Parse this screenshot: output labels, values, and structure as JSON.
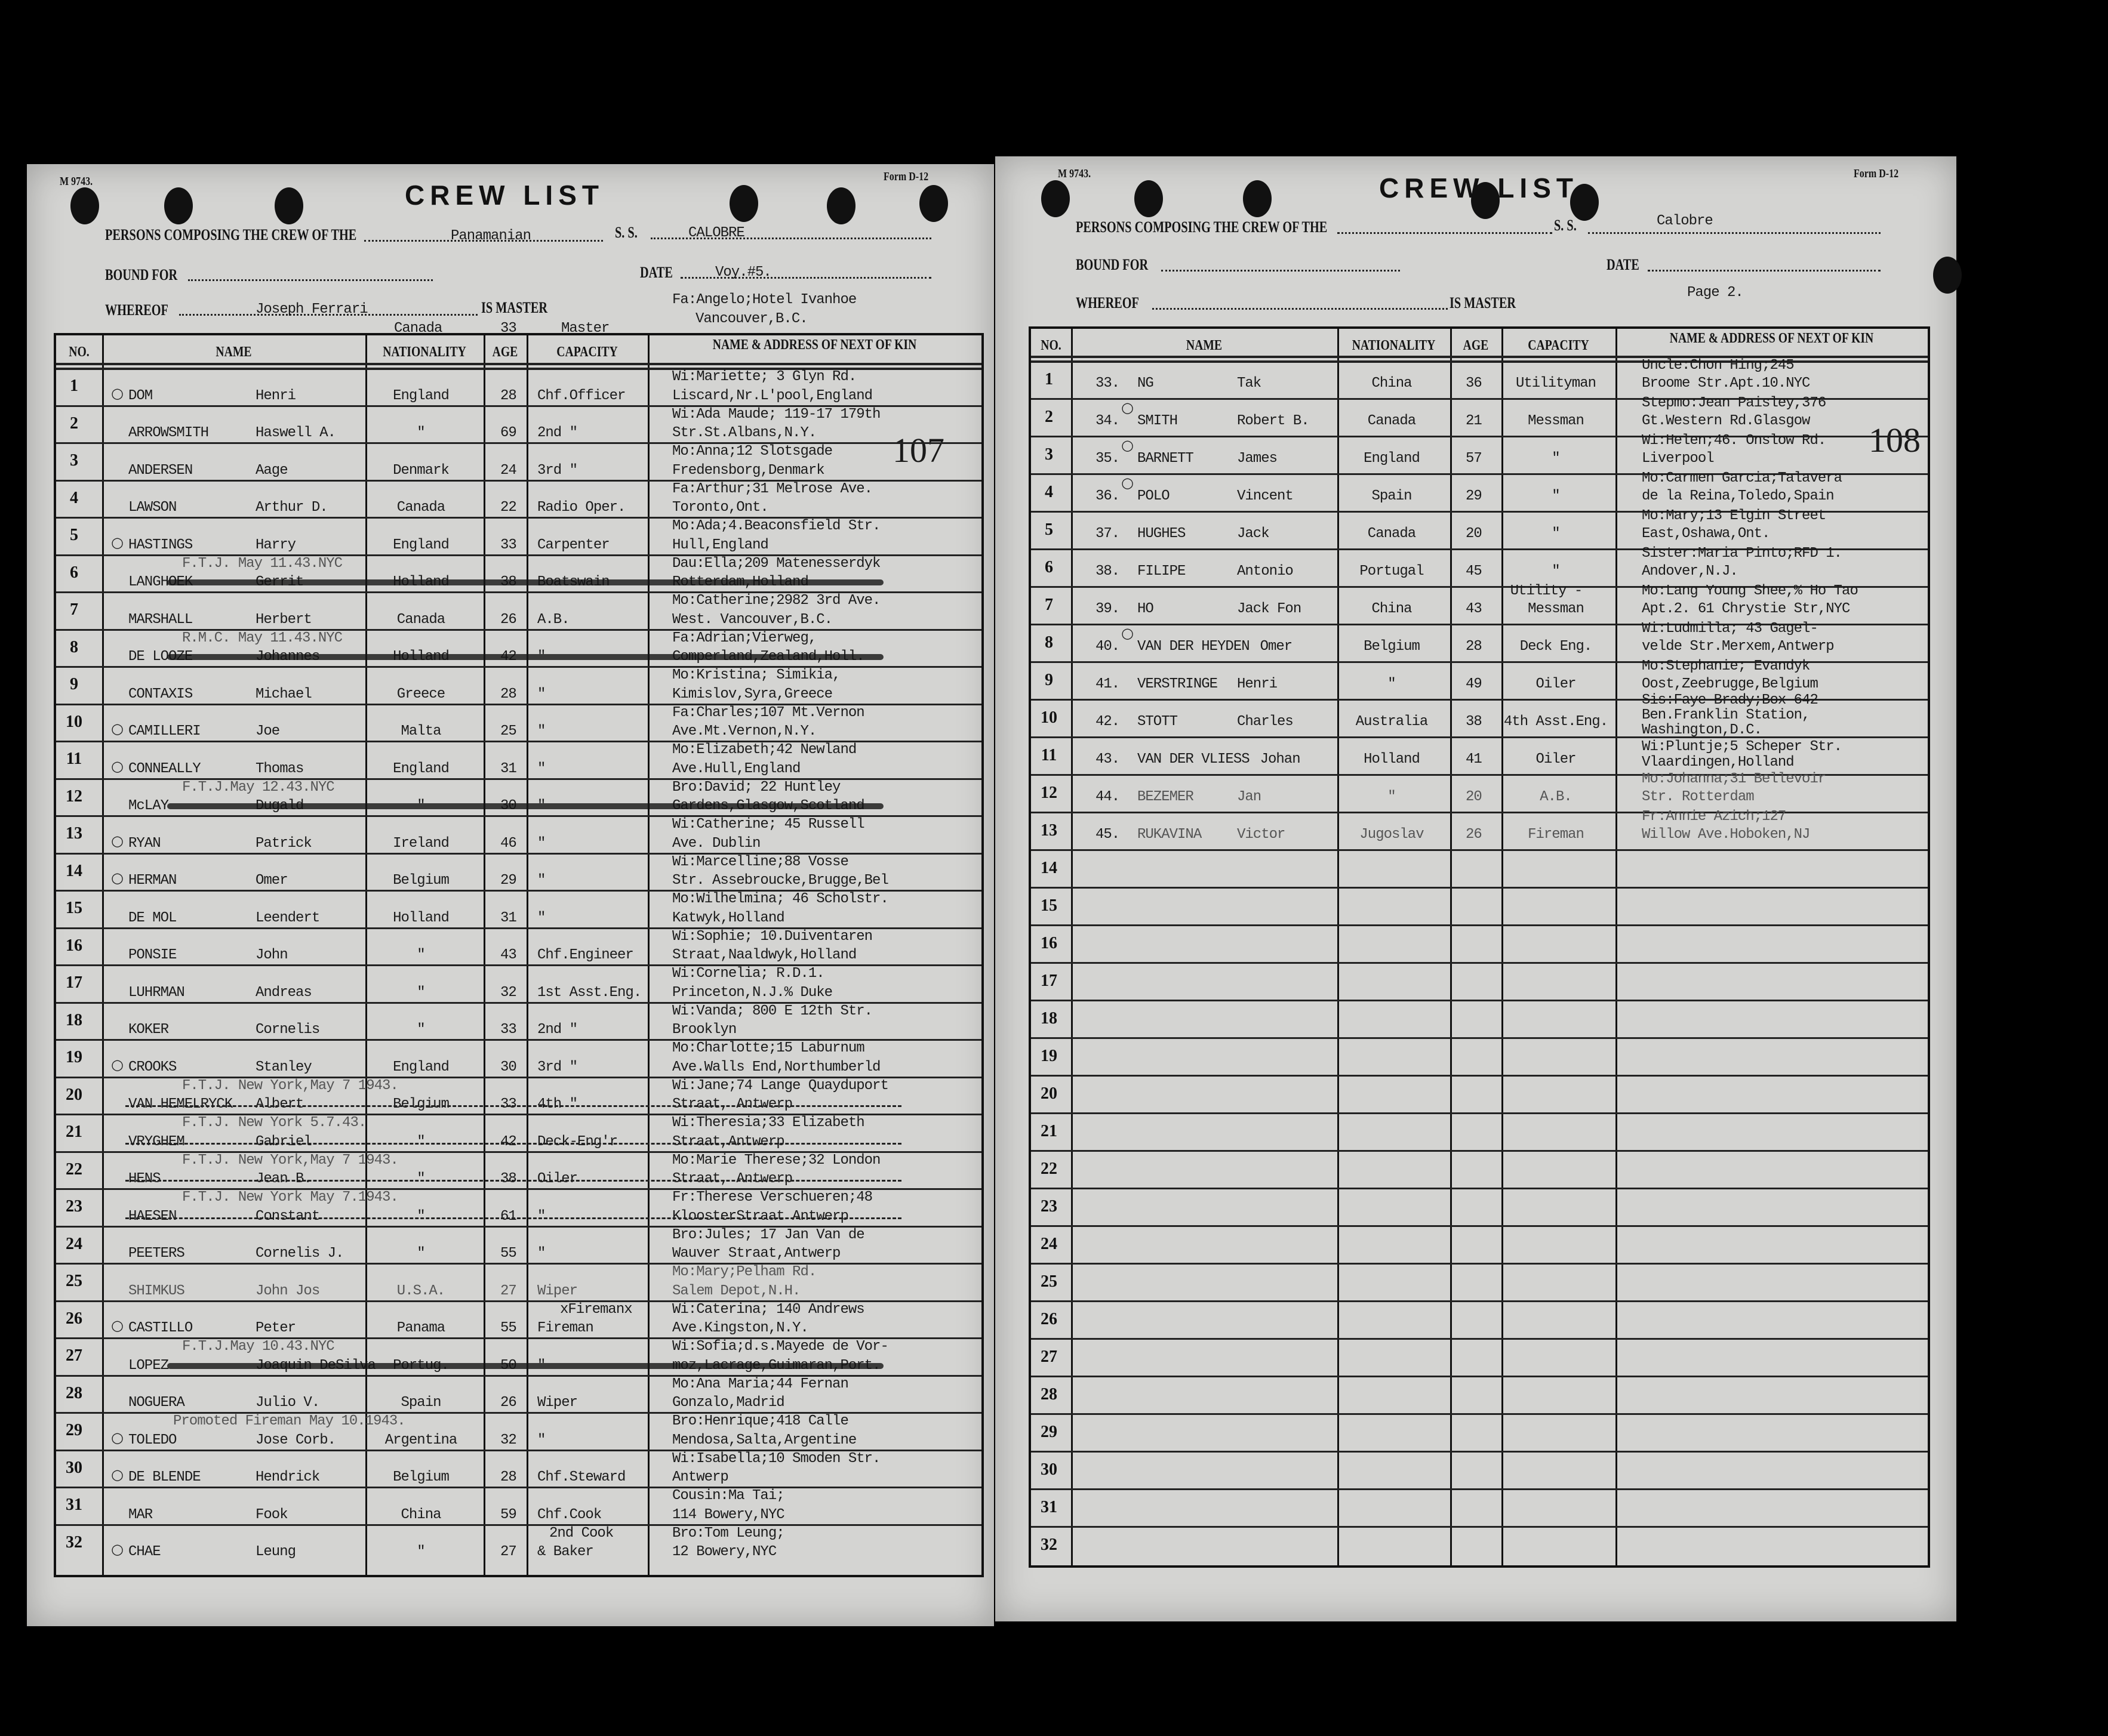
{
  "left_page": {
    "form_number": "M 9743.",
    "form_id": "Form D-12",
    "title": "CREW LIST",
    "persons_label": "PERSONS COMPOSING THE CREW OF THE",
    "crew_of_value": "Panamanian",
    "ss_label": "S. S.",
    "ship_name": "CALOBRE",
    "bound_for_label": "BOUND FOR",
    "date_label": "DATE",
    "date_value": "Voy.#5.",
    "whereof_label": "WHEREOF",
    "master_name": "Joseph Ferrari",
    "is_master_label": "IS MASTER",
    "master_kin_line1": "Fa:Angelo;Hotel Ivanhoe",
    "master_kin_line2": "Vancouver,B.C.",
    "master_nationality_note": "Canada",
    "master_age_note": "33",
    "master_capacity_note": "Master",
    "page_stamp": "107",
    "columns": {
      "no": "NO.",
      "name": "NAME",
      "nationality": "NATIONALITY",
      "age": "AGE",
      "capacity": "CAPACITY",
      "kin": "NAME & ADDRESS OF NEXT OF KIN"
    },
    "row_numbers": [
      "1",
      "2",
      "3",
      "4",
      "5",
      "6",
      "7",
      "8",
      "9",
      "10",
      "11",
      "12",
      "13",
      "14",
      "15",
      "16",
      "17",
      "18",
      "19",
      "20",
      "21",
      "22",
      "23",
      "24",
      "25",
      "26",
      "27",
      "28",
      "29",
      "30",
      "31",
      "32"
    ],
    "entries": [
      {
        "surname": "DOM",
        "given": "Henri",
        "nationality": "England",
        "age": "28",
        "capacity": "Chf.Officer",
        "kin": [
          "Wi:Mariette; 3 Glyn Rd.",
          "Liscard,Nr.L'pool,England"
        ],
        "mark": "O"
      },
      {
        "surname": "ARROWSMITH",
        "given": "Haswell A.",
        "nationality": "\"",
        "age": "69",
        "capacity": "2nd    \"",
        "kin": [
          "Wi:Ada Maude; 119-17  179th",
          "Str.St.Albans,N.Y."
        ]
      },
      {
        "surname": "ANDERSEN",
        "given": "Aage",
        "nationality": "Denmark",
        "age": "24",
        "capacity": "3rd    \"",
        "kin": [
          "Mo:Anna;12 Slotsgade",
          "Fredensborg,Denmark"
        ]
      },
      {
        "surname": "LAWSON",
        "given": "Arthur D.",
        "nationality": "Canada",
        "age": "22",
        "capacity": "Radio Oper.",
        "kin": [
          "Fa:Arthur;31 Melrose Ave.",
          "Toronto,Ont."
        ]
      },
      {
        "surname": "HASTINGS",
        "given": "Harry",
        "nationality": "England",
        "age": "33",
        "capacity": "Carpenter",
        "kin": [
          "Mo:Ada;4.Beaconsfield Str.",
          "Hull,England"
        ],
        "mark": "O"
      },
      {
        "surname": "LANGHOEK",
        "given": "Gerrit",
        "nationality": "Holland",
        "age": "38",
        "capacity": "Boatswain",
        "kin": [
          "Dau:Ella;209 Matenesserdyk",
          "Rotterdam,Holland"
        ],
        "note": "F.T.J. May 11.43.NYC",
        "struck": "heavy"
      },
      {
        "surname": "MARSHALL",
        "given": "Herbert",
        "nationality": "Canada",
        "age": "26",
        "capacity": "A.B.",
        "kin": [
          "Mo:Catherine;2982 3rd Ave.",
          "West. Vancouver,B.C."
        ]
      },
      {
        "surname": "DE LOOZE",
        "given": "Johannes",
        "nationality": "Holland",
        "age": "42",
        "capacity": "\"",
        "kin": [
          "Fa:Adrian;Vierweg,",
          "Comperland,Zealand,Holl."
        ],
        "note": "R.M.C. May 11.43.NYC",
        "struck": "heavy"
      },
      {
        "surname": "CONTAXIS",
        "given": "Michael",
        "nationality": "Greece",
        "age": "28",
        "capacity": "\"",
        "kin": [
          "Mo:Kristina; Simikia,",
          "Kimislov,Syra,Greece"
        ]
      },
      {
        "surname": "CAMILLERI",
        "given": "Joe",
        "nationality": "Malta",
        "age": "25",
        "capacity": "\"",
        "kin": [
          "Fa:Charles;107 Mt.Vernon",
          "Ave.Mt.Vernon,N.Y."
        ],
        "mark": "O"
      },
      {
        "surname": "CONNEALLY",
        "given": "Thomas",
        "nationality": "England",
        "age": "31",
        "capacity": "\"",
        "kin": [
          "Mo:Elizabeth;42 Newland",
          "Ave.Hull,England"
        ],
        "mark": "O"
      },
      {
        "surname": "McLAY",
        "given": "Dugald",
        "nationality": "\"",
        "age": "30",
        "capacity": "\"",
        "kin": [
          "Bro:David; 22 Huntley",
          "Gardens,Glasgow,Scotland"
        ],
        "note": "F.T.J.May 12.43.NYC",
        "struck": "heavy"
      },
      {
        "surname": "RYAN",
        "given": "Patrick",
        "nationality": "Ireland",
        "age": "46",
        "capacity": "\"",
        "kin": [
          "Wi:Catherine; 45 Russell",
          "Ave. Dublin"
        ],
        "mark": "O"
      },
      {
        "surname": "HERMAN",
        "given": "Omer",
        "nationality": "Belgium",
        "age": "29",
        "capacity": "\"",
        "kin": [
          "Wi:Marcelline;88 Vosse",
          "Str. Assebroucke,Brugge,Bel"
        ],
        "mark": "O"
      },
      {
        "surname": "DE MOL",
        "given": "Leendert",
        "nationality": "Holland",
        "age": "31",
        "capacity": "\"",
        "kin": [
          "Mo:Wilhelmina; 46 Scholstr.",
          "Katwyk,Holland"
        ]
      },
      {
        "surname": "PONSIE",
        "given": "John",
        "nationality": "\"",
        "age": "43",
        "capacity": "Chf.Engineer",
        "kin": [
          "Wi:Sophie; 10.Duiventaren",
          "Straat,Naaldwyk,Holland"
        ]
      },
      {
        "surname": "LUHRMAN",
        "given": "Andreas",
        "nationality": "\"",
        "age": "32",
        "capacity": "1st Asst.Eng.",
        "kin": [
          "Wi:Cornelia; R.D.1.",
          "Princeton,N.J.% Duke"
        ]
      },
      {
        "surname": "KOKER",
        "given": "Cornelis",
        "nationality": "\"",
        "age": "33",
        "capacity": "2nd    \"",
        "kin": [
          "Wi:Vanda; 800 E 12th Str.",
          "Brooklyn"
        ]
      },
      {
        "surname": "CROOKS",
        "given": "Stanley",
        "nationality": "England",
        "age": "30",
        "capacity": "3rd    \"",
        "kin": [
          "Mo:Charlotte;15 Laburnum",
          "Ave.Walls End,Northumberld"
        ],
        "mark": "O"
      },
      {
        "surname": "VAN HEMELRYCK",
        "given": "Albert",
        "nationality": "Belgium",
        "age": "33",
        "capacity": "4th    \"",
        "kin": [
          "Wi:Jane;74 Lange Quayduport",
          "Straat, Antwerp"
        ],
        "note": "F.T.J. New York,May 7 1943.",
        "struck": "dashed"
      },
      {
        "surname": "VRYGHEM",
        "given": "Gabriel",
        "nationality": "\"",
        "age": "42",
        "capacity": "Deck-Eng'r",
        "kin": [
          "Wi:Theresia;33 Elizabeth",
          "Straat,Antwerp"
        ],
        "note": "F.T.J. New York 5.7.43.",
        "struck": "dashed"
      },
      {
        "surname": "HENS",
        "given": "Jean B.",
        "nationality": "\"",
        "age": "38",
        "capacity": "Oiler",
        "kin": [
          "Mo:Marie Therese;32 London",
          "Straat, Antwerp"
        ],
        "note": "F.T.J. New York,May 7 1943.",
        "struck": "dashed"
      },
      {
        "surname": "HAESEN",
        "given": "Constant",
        "nationality": "\"",
        "age": "61",
        "capacity": "\"",
        "kin": [
          "Fr:Therese Verschueren;48",
          "KloosterStraat Antwerp"
        ],
        "note": "F.T.J. New York May 7.1943.",
        "struck": "dashed"
      },
      {
        "surname": "PEETERS",
        "given": "Cornelis J.",
        "nationality": "\"",
        "age": "55",
        "capacity": "\"",
        "kin": [
          "Bro:Jules; 17 Jan Van de",
          "Wauver Straat,Antwerp"
        ]
      },
      {
        "surname": "SHIMKUS",
        "given": "John Jos",
        "nationality": "U.S.A.",
        "age": "27",
        "capacity": "Wiper",
        "capacity_below": "xFiremanx",
        "kin": [
          "Mo:Mary;Pelham Rd.",
          "Salem Depot,N.H."
        ],
        "faint": true
      },
      {
        "surname": "CASTILLO",
        "given": "Peter",
        "nationality": "Panama",
        "age": "55",
        "capacity": "Fireman",
        "kin": [
          "Wi:Caterina; 140 Andrews",
          "Ave.Kingston,N.Y."
        ],
        "mark": "O"
      },
      {
        "surname": "LOPEZ",
        "given": "Joaquin DeSilva",
        "nationality": "Portug.",
        "age": "50",
        "capacity": "\"",
        "kin": [
          "Wi:Sofia;d.s.Mayede de Vor-",
          "moz,Lacrage,Guimaran,Port."
        ],
        "note": "F.T.J.May 10.43.NYC",
        "struck": "heavy"
      },
      {
        "surname": "NOGUERA",
        "given": "Julio V.",
        "nationality": "Spain",
        "age": "26",
        "capacity": "Wiper",
        "kin": [
          "Mo:Ana Maria;44 Fernan",
          "Gonzalo,Madrid"
        ]
      },
      {
        "surname": "TOLEDO",
        "given": "Jose Corb.",
        "nationality": "Argentina",
        "age": "32",
        "capacity": "\"",
        "kin": [
          "Bro:Henrique;418 Calle",
          "Mendosa,Salta,Argentine"
        ],
        "note": "Promoted Fireman May 10.1943.",
        "mark": "O"
      },
      {
        "surname": "DE BLENDE",
        "given": "Hendrick",
        "nationality": "Belgium",
        "age": "28",
        "capacity": "Chf.Steward",
        "kin": [
          "Wi:Isabella;10 Smoden Str.",
          "Antwerp"
        ],
        "mark": "O"
      },
      {
        "surname": "MAR",
        "given": "Fook",
        "nationality": "China",
        "age": "59",
        "capacity": "Chf.Cook",
        "kin": [
          "Cousin:Ma Tai;",
          "114 Bowery,NYC"
        ]
      },
      {
        "surname": "CHAE",
        "given": "Leung",
        "nationality": "\"",
        "age": "27",
        "capacity": "& Baker",
        "capacity_above": "2nd Cook",
        "kin": [
          "Bro:Tom Leung;",
          "12 Bowery,NYC"
        ],
        "mark": "O"
      }
    ]
  },
  "right_page": {
    "form_number": "M 9743.",
    "form_id": "Form D-12",
    "title": "CREW LIST",
    "persons_label": "PERSONS COMPOSING THE CREW OF THE",
    "ss_label": "S. S.",
    "ship_name": "Calobre",
    "bound_for_label": "BOUND FOR",
    "date_label": "DATE",
    "whereof_label": "WHEREOF",
    "is_master_label": "IS MASTER",
    "page_label": "Page 2.",
    "page_stamp": "108",
    "columns": {
      "no": "NO.",
      "name": "NAME",
      "nationality": "NATIONALITY",
      "age": "AGE",
      "capacity": "CAPACITY",
      "kin": "NAME & ADDRESS OF NEXT OF KIN"
    },
    "row_numbers": [
      "1",
      "2",
      "3",
      "4",
      "5",
      "6",
      "7",
      "8",
      "9",
      "10",
      "11",
      "12",
      "13",
      "14",
      "15",
      "16",
      "17",
      "18",
      "19",
      "20",
      "21",
      "22",
      "23",
      "24",
      "25",
      "26",
      "27",
      "28",
      "29",
      "30",
      "31",
      "32"
    ],
    "entries": [
      {
        "seq": "33.",
        "surname": "NG",
        "given": "Tak",
        "nationality": "China",
        "age": "36",
        "capacity": "Utilityman",
        "kin": [
          "Uncle:Chon Hing;245",
          "Broome Str.Apt.10.NYC"
        ]
      },
      {
        "seq": "34.",
        "surname": "SMITH",
        "given": "Robert B.",
        "nationality": "Canada",
        "age": "21",
        "capacity": "Messman",
        "kin": [
          "Stepmo:Jean Paisley,376",
          "Gt.Western Rd.Glasgow"
        ],
        "mark": "O"
      },
      {
        "seq": "35.",
        "surname": "BARNETT",
        "given": "James",
        "nationality": "England",
        "age": "57",
        "capacity": "\"",
        "kin": [
          "Wi:Helen;46. Onslow Rd.",
          "Liverpool"
        ],
        "mark": "O"
      },
      {
        "seq": "36.",
        "surname": "POLO",
        "given": "Vincent",
        "nationality": "Spain",
        "age": "29",
        "capacity": "\"",
        "kin": [
          "Mo:Carmen Garcia;Talavera",
          "de la Reina,Toledo,Spain"
        ],
        "mark": "O"
      },
      {
        "seq": "37.",
        "surname": "HUGHES",
        "given": "Jack",
        "nationality": "Canada",
        "age": "20",
        "capacity": "\"",
        "kin": [
          "Mo:Mary;13 Elgin Street",
          "East,Oshawa,Ont."
        ]
      },
      {
        "seq": "38.",
        "surname": "FILIPE",
        "given": "Antonio",
        "nationality": "Portugal",
        "age": "45",
        "capacity": "\"",
        "kin": [
          "Sister:Maria Pinto;RFD 1.",
          "Andover,N.J."
        ]
      },
      {
        "seq": "39.",
        "surname": "HO",
        "given": "Jack Fon",
        "nationality": "China",
        "age": "43",
        "capacity": "Messman",
        "capacity_above": "Utility -",
        "kin": [
          "Mo:Lang Young Shee,% Ho Tao",
          "Apt.2. 61 Chrystie Str,NYC"
        ]
      },
      {
        "seq": "40.",
        "surname": "VAN DER HEYDEN",
        "given": "Omer",
        "nationality": "Belgium",
        "age": "28",
        "capacity": "Deck Eng.",
        "kin": [
          "Wi:Ludmilla; 43 Gagel-",
          "velde Str.Merxem,Antwerp"
        ],
        "mark": "O"
      },
      {
        "seq": "41.",
        "surname": "VERSTRINGE",
        "given": "Henri",
        "nationality": "\"",
        "age": "49",
        "capacity": "Oiler",
        "kin": [
          "Mo:Stephanie; Evandyk",
          "Oost,Zeebrugge,Belgium"
        ]
      },
      {
        "seq": "42.",
        "surname": "STOTT",
        "given": "Charles",
        "nationality": "Australia",
        "age": "38",
        "capacity": "4th Asst.Eng.",
        "kin": [
          "Sis:Faye Brady;Box 642",
          "Ben.Franklin Station,",
          "Washington,D.C."
        ]
      },
      {
        "seq": "43.",
        "surname": "VAN DER VLIESS",
        "given": "Johan",
        "nationality": "Holland",
        "age": "41",
        "capacity": "Oiler",
        "kin": [
          "Wi:Pluntje;5 Scheper Str.",
          "Vlaardingen,Holland"
        ]
      },
      {
        "seq": "44.",
        "surname": "BEZEMER",
        "given": "Jan",
        "nationality": "\"",
        "age": "20",
        "capacity": "A.B.",
        "kin": [
          "Mo:Johanna;31 Bellevoir",
          "Str. Rotterdam"
        ],
        "faint": true
      },
      {
        "seq": "45.",
        "surname": "RUKAVINA",
        "given": "Victor",
        "nationality": "Jugoslav",
        "age": "26",
        "capacity": "Fireman",
        "kin": [
          "Fr:Annie Azich;127",
          "Willow Ave.Hoboken,NJ"
        ],
        "faint": true
      }
    ]
  },
  "colors": {
    "background": "#000000",
    "paper": "#d4d4d2",
    "ink": "#1b1b1b"
  }
}
